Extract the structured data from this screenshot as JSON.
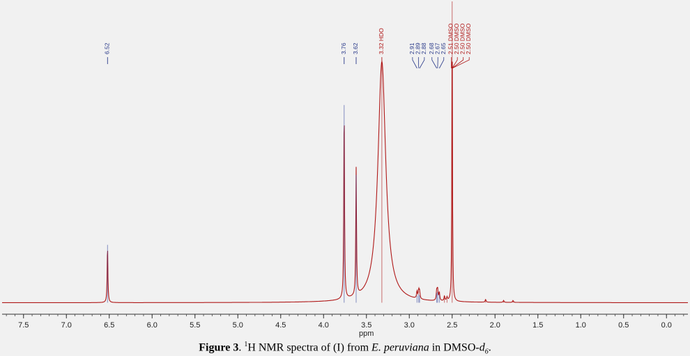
{
  "chart_data": {
    "type": "line",
    "xlabel": "ppm",
    "x_reversed": true,
    "xlim": [
      7.75,
      -0.25
    ],
    "ticks": [
      "7.5",
      "7.0",
      "6.5",
      "6.0",
      "5.5",
      "5.0",
      "4.5",
      "4.0",
      "3.5",
      "3.0",
      "2.5",
      "2.0",
      "1.5",
      "1.0",
      "0.5",
      "0.0"
    ],
    "peaks": [
      {
        "shift": 6.52,
        "height": 0.24,
        "width": 0.005,
        "color": "#3a4aa0"
      },
      {
        "shift": 3.76,
        "height": 0.82,
        "width": 0.005,
        "color": "#3a4aa0"
      },
      {
        "shift": 3.62,
        "height": 0.53,
        "width": 0.005,
        "color": "#3a4aa0"
      },
      {
        "shift": 3.32,
        "height": 1.0,
        "width": 0.055,
        "color": "#b01818"
      },
      {
        "shift": 2.91,
        "height": 0.03,
        "width": 0.006,
        "color": "#3a4aa0"
      },
      {
        "shift": 2.89,
        "height": 0.035,
        "width": 0.006,
        "color": "#3a4aa0"
      },
      {
        "shift": 2.88,
        "height": 0.03,
        "width": 0.006,
        "color": "#3a4aa0"
      },
      {
        "shift": 2.68,
        "height": 0.04,
        "width": 0.006,
        "color": "#3a4aa0"
      },
      {
        "shift": 2.67,
        "height": 0.045,
        "width": 0.006,
        "color": "#3a4aa0"
      },
      {
        "shift": 2.65,
        "height": 0.035,
        "width": 0.006,
        "color": "#3a4aa0"
      },
      {
        "shift": 2.5,
        "height": 1.25,
        "width": 0.004,
        "color": "#b01818"
      },
      {
        "shift": 2.59,
        "height": 0.02,
        "width": 0.006,
        "color": "#b01818"
      },
      {
        "shift": 2.56,
        "height": 0.015,
        "width": 0.006,
        "color": "#b01818"
      },
      {
        "shift": 2.11,
        "height": 0.012,
        "width": 0.006,
        "color": "#b01818"
      },
      {
        "shift": 1.9,
        "height": 0.008,
        "width": 0.006,
        "color": "#b01818"
      },
      {
        "shift": 1.79,
        "height": 0.008,
        "width": 0.006,
        "color": "#b01818"
      }
    ],
    "peak_labels": [
      {
        "shift": 6.52,
        "text": "6.52",
        "color": "#2a3a8a",
        "group": "single"
      },
      {
        "shift": 3.76,
        "text": "3.76",
        "color": "#2a3a8a",
        "group": "single"
      },
      {
        "shift": 3.62,
        "text": "3.62",
        "color": "#2a3a8a",
        "group": "single"
      },
      {
        "shift": 3.32,
        "text": "3.32 HDO",
        "color": "#b01818",
        "group": "single"
      },
      {
        "shift": 2.91,
        "text": "2.91",
        "color": "#2a3a8a",
        "group": "m1"
      },
      {
        "shift": 2.89,
        "text": "2.89",
        "color": "#2a3a8a",
        "group": "m1"
      },
      {
        "shift": 2.88,
        "text": "2.88",
        "color": "#2a3a8a",
        "group": "m1"
      },
      {
        "shift": 2.68,
        "text": "2.68",
        "color": "#2a3a8a",
        "group": "m2"
      },
      {
        "shift": 2.67,
        "text": "2.67",
        "color": "#2a3a8a",
        "group": "m2"
      },
      {
        "shift": 2.65,
        "text": "2.65",
        "color": "#2a3a8a",
        "group": "m2"
      },
      {
        "shift": 2.51,
        "text": "2.51 DMSO",
        "color": "#b01818",
        "group": "m3"
      },
      {
        "shift": 2.5,
        "text": "2.50 DMSO",
        "color": "#b01818",
        "group": "m3"
      },
      {
        "shift": 2.5,
        "text": "2.50 DMSO",
        "color": "#b01818",
        "group": "m3"
      },
      {
        "shift": 2.5,
        "text": "2.50 DMSO",
        "color": "#b01818",
        "group": "m3"
      }
    ],
    "line_color": "#b01818"
  },
  "caption": {
    "figure_label": "Figure 3",
    "sep": ". ",
    "isotope": "1",
    "text_a": "H NMR spectra of (I) from ",
    "species": "E. peruviana",
    "text_b": " in DMSO-",
    "solvent_suffix": "d",
    "subscript": "6",
    "end": "."
  }
}
